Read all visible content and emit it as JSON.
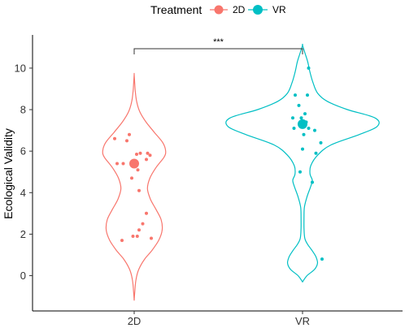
{
  "chart_data": {
    "type": "violin",
    "ylabel": "Ecological Validity",
    "xlabel": "",
    "categories": [
      "2D",
      "VR"
    ],
    "ylim": [
      -1.7,
      11.6
    ],
    "yticks": [
      0,
      2,
      4,
      6,
      8,
      10
    ],
    "legend": {
      "title": "Treatment",
      "placement": "top",
      "entries": [
        {
          "label": "2D",
          "color": "#F8766D"
        },
        {
          "label": "VR",
          "color": "#00BFC4"
        }
      ]
    },
    "series": [
      {
        "name": "2D",
        "color": "#F8766D",
        "mean": 5.4,
        "violin_range": [
          -1.2,
          9.7
        ],
        "density": [
          [
            -1.2,
            0.0
          ],
          [
            -0.7,
            0.02
          ],
          [
            -0.2,
            0.05
          ],
          [
            0.3,
            0.13
          ],
          [
            0.8,
            0.3
          ],
          [
            1.2,
            0.5
          ],
          [
            1.7,
            0.7
          ],
          [
            2.2,
            0.8
          ],
          [
            2.7,
            0.77
          ],
          [
            3.2,
            0.62
          ],
          [
            3.7,
            0.46
          ],
          [
            4.2,
            0.38
          ],
          [
            4.7,
            0.45
          ],
          [
            5.2,
            0.62
          ],
          [
            5.7,
            0.85
          ],
          [
            6.0,
            0.9
          ],
          [
            6.4,
            0.82
          ],
          [
            6.9,
            0.58
          ],
          [
            7.4,
            0.34
          ],
          [
            7.9,
            0.16
          ],
          [
            8.4,
            0.07
          ],
          [
            8.9,
            0.03
          ],
          [
            9.3,
            0.015
          ],
          [
            9.7,
            0.0
          ]
        ],
        "points": [
          [
            -0.32,
            6.6
          ],
          [
            -0.08,
            6.8
          ],
          [
            -0.12,
            6.5
          ],
          [
            -0.28,
            5.4
          ],
          [
            -0.18,
            5.4
          ],
          [
            0.1,
            5.9
          ],
          [
            0.04,
            5.85
          ],
          [
            0.2,
            5.6
          ],
          [
            0.22,
            5.9
          ],
          [
            0.26,
            5.8
          ],
          [
            0.06,
            5.1
          ],
          [
            -0.04,
            4.7
          ],
          [
            0.08,
            4.1
          ],
          [
            0.2,
            3.0
          ],
          [
            0.14,
            2.5
          ],
          [
            0.08,
            2.2
          ],
          [
            0.05,
            1.9
          ],
          [
            -0.02,
            1.9
          ],
          [
            -0.2,
            1.7
          ],
          [
            0.28,
            1.8
          ]
        ]
      },
      {
        "name": "VR",
        "color": "#00BFC4",
        "mean": 7.3,
        "violin_range": [
          -0.3,
          11.1
        ],
        "density": [
          [
            -0.3,
            0.0
          ],
          [
            0.0,
            0.06
          ],
          [
            0.3,
            0.16
          ],
          [
            0.6,
            0.2
          ],
          [
            0.9,
            0.18
          ],
          [
            1.2,
            0.13
          ],
          [
            1.5,
            0.07
          ],
          [
            1.8,
            0.03
          ],
          [
            2.3,
            0.02
          ],
          [
            2.8,
            0.02
          ],
          [
            3.3,
            0.025
          ],
          [
            3.8,
            0.06
          ],
          [
            4.3,
            0.11
          ],
          [
            4.6,
            0.13
          ],
          [
            4.9,
            0.1
          ],
          [
            5.3,
            0.11
          ],
          [
            5.8,
            0.2
          ],
          [
            6.3,
            0.38
          ],
          [
            6.8,
            0.76
          ],
          [
            7.2,
            1.0
          ],
          [
            7.6,
            0.97
          ],
          [
            8.0,
            0.6
          ],
          [
            8.4,
            0.33
          ],
          [
            8.8,
            0.2
          ],
          [
            9.3,
            0.14
          ],
          [
            9.8,
            0.1
          ],
          [
            10.3,
            0.07
          ],
          [
            10.7,
            0.035
          ],
          [
            11.1,
            0.0
          ]
        ],
        "points": [
          [
            -0.12,
            8.7
          ],
          [
            0.1,
            10.0
          ],
          [
            0.08,
            8.7
          ],
          [
            -0.06,
            8.2
          ],
          [
            -0.16,
            7.6
          ],
          [
            0.04,
            7.8
          ],
          [
            0.06,
            7.4
          ],
          [
            -0.02,
            7.6
          ],
          [
            -0.14,
            7.1
          ],
          [
            0.1,
            7.1
          ],
          [
            0.2,
            7.0
          ],
          [
            0.02,
            6.8
          ],
          [
            0.3,
            6.4
          ],
          [
            0.22,
            5.9
          ],
          [
            0.0,
            6.1
          ],
          [
            -0.04,
            5.0
          ],
          [
            0.16,
            4.5
          ],
          [
            0.32,
            0.8
          ]
        ]
      }
    ],
    "significance": {
      "label": "***",
      "between": [
        "2D",
        "VR"
      ]
    }
  }
}
